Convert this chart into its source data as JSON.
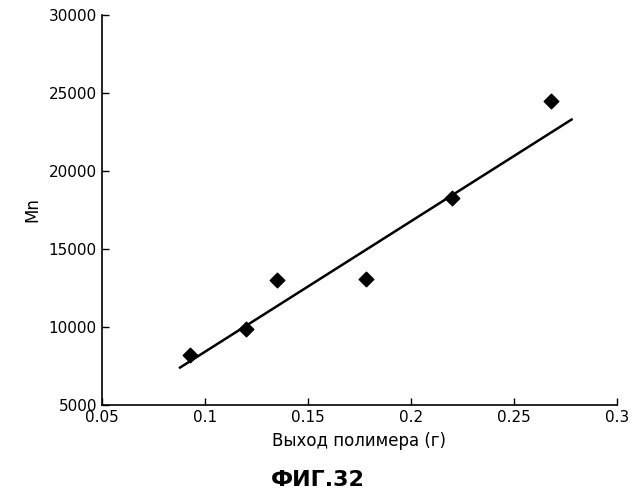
{
  "scatter_x": [
    0.093,
    0.12,
    0.135,
    0.178,
    0.22,
    0.268
  ],
  "scatter_y": [
    8200,
    9900,
    13000,
    13100,
    18300,
    24500
  ],
  "line_x": [
    0.088,
    0.278
  ],
  "line_y": [
    7400,
    23300
  ],
  "xlabel": "Выход полимера (г)",
  "ylabel": "Mn",
  "title": "ФИГ.32",
  "xlim": [
    0.05,
    0.3
  ],
  "ylim": [
    5000,
    30000
  ],
  "xticks": [
    0.05,
    0.1,
    0.15,
    0.2,
    0.25,
    0.3
  ],
  "yticks": [
    5000,
    10000,
    15000,
    20000,
    25000,
    30000
  ],
  "xtick_labels": [
    "0.05",
    "0.1",
    "0.15",
    "0.2",
    "0.25",
    "0.3"
  ],
  "ytick_labels": [
    "5000",
    "10000",
    "15000",
    "20000",
    "25000",
    "30000"
  ],
  "marker": "D",
  "marker_size": 55,
  "marker_color": "#000000",
  "line_color": "#000000",
  "line_width": 1.8,
  "bg_color": "#ffffff",
  "tick_fontsize": 11,
  "label_fontsize": 12,
  "title_fontsize": 16,
  "font_family": "DejaVu Sans"
}
